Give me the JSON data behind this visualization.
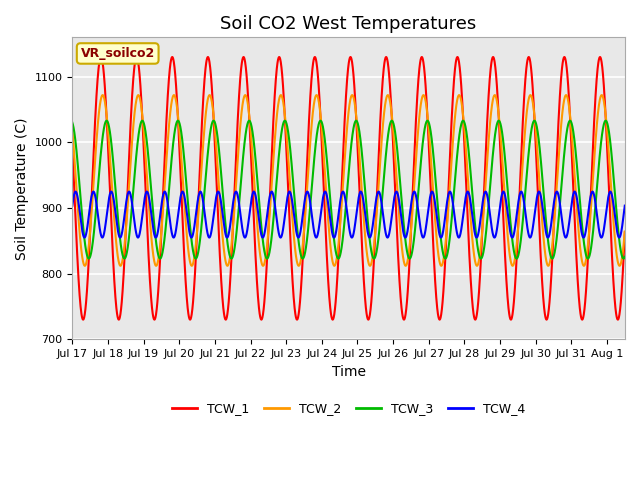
{
  "title": "Soil CO2 West Temperatures",
  "ylabel": "Soil Temperature (C)",
  "xlabel": "Time",
  "ylim": [
    700,
    1160
  ],
  "annotation_label": "VR_soilco2",
  "xtick_labels": [
    "Jul 17",
    "Jul 18",
    "Jul 19",
    "Jul 20",
    "Jul 21",
    "Jul 22",
    "Jul 23",
    "Jul 24",
    "Jul 25",
    "Jul 26",
    "Jul 27",
    "Jul 28",
    "Jul 29",
    "Jul 30",
    "Jul 31",
    "Aug 1"
  ],
  "series": [
    "TCW_1",
    "TCW_2",
    "TCW_3",
    "TCW_4"
  ],
  "colors": [
    "#ff0000",
    "#ff9900",
    "#00bb00",
    "#0000ff"
  ],
  "tcw1_amplitude": 200,
  "tcw1_mean": 930,
  "tcw1_phase": 2.8,
  "tcw2_amplitude": 130,
  "tcw2_mean": 942,
  "tcw2_phase": 2.5,
  "tcw3_amplitude": 105,
  "tcw3_mean": 928,
  "tcw3_phase": 1.8,
  "tcw4_amplitude": 35,
  "tcw4_mean": 890,
  "tcw4_phase": 0.4,
  "tcw4_period": 12,
  "period_hours": 24,
  "num_days": 15.5,
  "bg_color": "#e8e8e8",
  "title_fontsize": 13,
  "label_fontsize": 10,
  "tick_fontsize": 8,
  "linewidth": 1.5,
  "annotation_fontsize": 9,
  "annotation_color": "#8B0000",
  "annotation_bg": "#ffffcc",
  "annotation_edge": "#ccaa00"
}
